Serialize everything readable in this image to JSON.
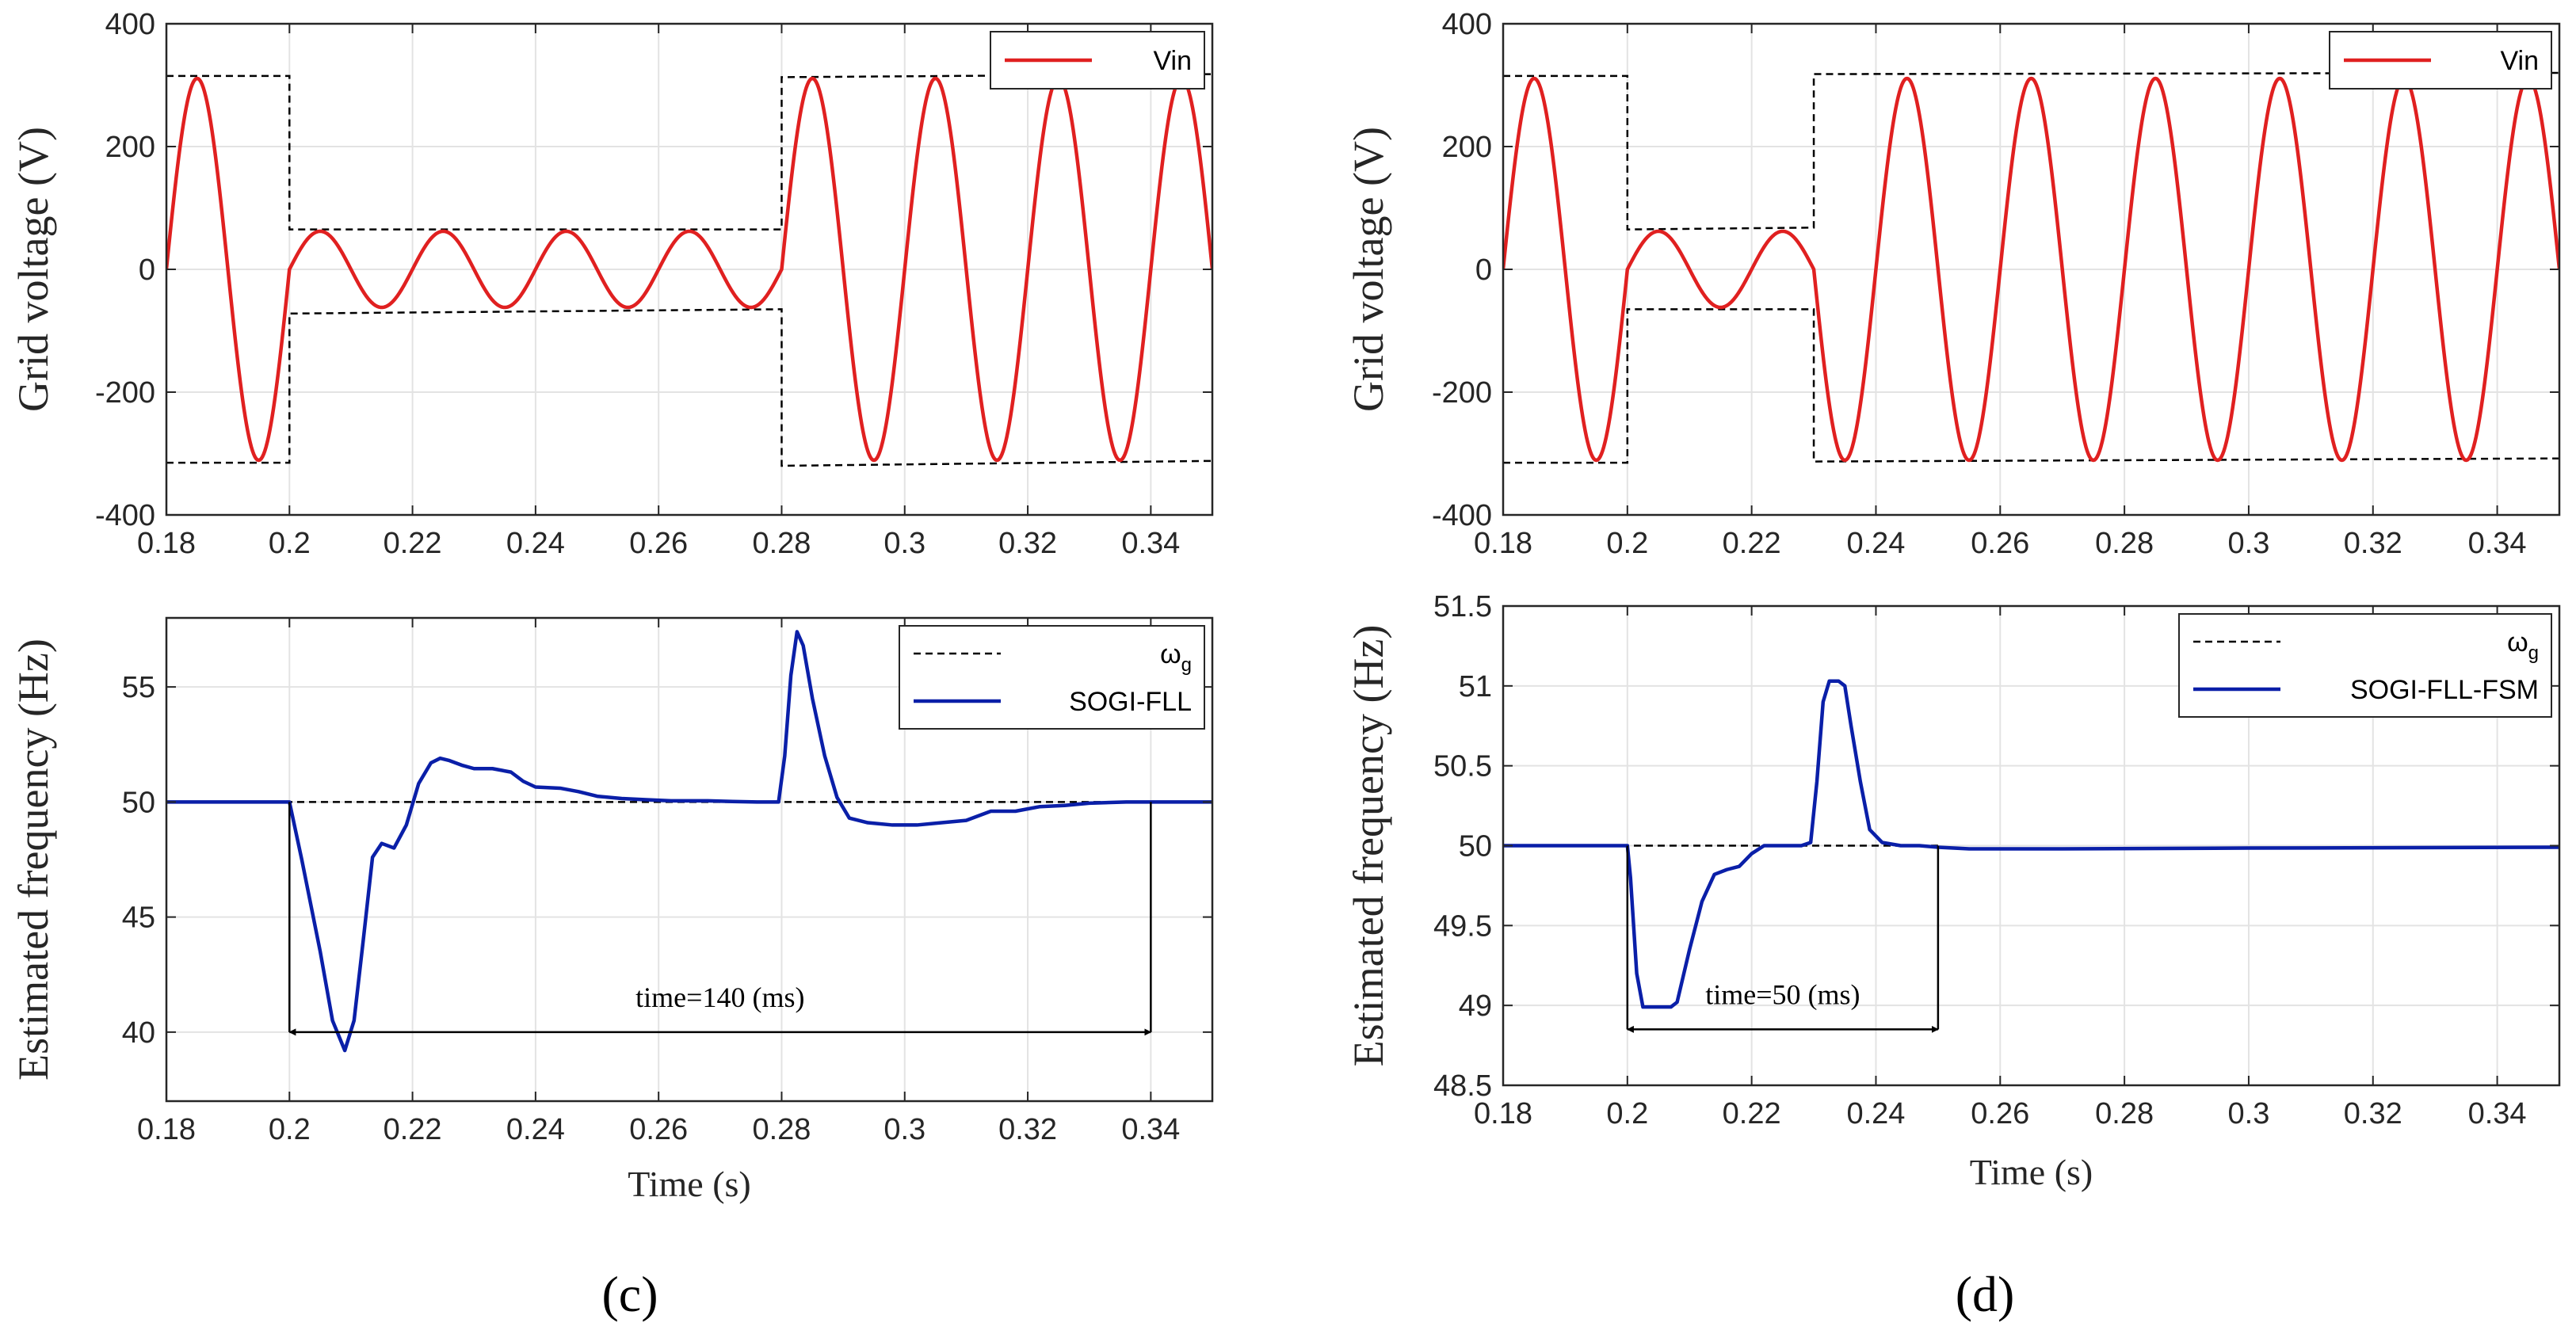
{
  "chart_data": [
    {
      "id": "c_top",
      "type": "line",
      "panel": "c",
      "title": "",
      "xlabel": "",
      "ylabel": "Grid voltage (V)",
      "xlim": [
        0.18,
        0.35
      ],
      "ylim": [
        -400,
        400
      ],
      "xticks": [
        0.18,
        0.2,
        0.22,
        0.24,
        0.26,
        0.28,
        0.3,
        0.32,
        0.34
      ],
      "yticks": [
        -400,
        -200,
        0,
        200,
        400
      ],
      "xtick_labels": [
        "0.18",
        "0.2",
        "0.22",
        "0.24",
        "0.26",
        "0.28",
        "0.3",
        "0.32",
        "0.34"
      ],
      "ytick_labels": [
        "-400",
        "-200",
        "0",
        "200",
        "400"
      ],
      "grid": true,
      "legend": {
        "position": "top-right",
        "entries": [
          {
            "label": "Vin",
            "color": "#e02020",
            "style": "solid"
          }
        ]
      },
      "signal": {
        "name": "Vin",
        "kind": "sine",
        "frequency_hz": 50,
        "color": "#e02020",
        "segments": [
          [
            0.18,
            0.2,
            311
          ],
          [
            0.2,
            0.28,
            62
          ],
          [
            0.28,
            0.35,
            311
          ]
        ]
      },
      "envelope": {
        "color": "#000000",
        "style": "dashed",
        "upper": [
          [
            0.18,
            315
          ],
          [
            0.2,
            315
          ],
          [
            0.2,
            65
          ],
          [
            0.28,
            65
          ],
          [
            0.28,
            313
          ],
          [
            0.35,
            318
          ]
        ],
        "lower": [
          [
            0.18,
            -315
          ],
          [
            0.2,
            -315
          ],
          [
            0.2,
            -72
          ],
          [
            0.28,
            -65
          ],
          [
            0.28,
            -320
          ],
          [
            0.35,
            -312
          ]
        ]
      }
    },
    {
      "id": "c_bottom",
      "type": "line",
      "panel": "c",
      "title": "",
      "xlabel": "Time (s)",
      "ylabel": "Estimated frequency (Hz)",
      "xlim": [
        0.18,
        0.35
      ],
      "ylim": [
        37,
        58
      ],
      "xticks": [
        0.18,
        0.2,
        0.22,
        0.24,
        0.26,
        0.28,
        0.3,
        0.32,
        0.34
      ],
      "yticks": [
        40,
        45,
        50,
        55
      ],
      "xtick_labels": [
        "0.18",
        "0.2",
        "0.22",
        "0.24",
        "0.26",
        "0.28",
        "0.3",
        "0.32",
        "0.34"
      ],
      "ytick_labels": [
        "40",
        "45",
        "50",
        "55"
      ],
      "grid": true,
      "legend": {
        "position": "top-right",
        "entries": [
          {
            "label": "ωg",
            "color": "#000000",
            "style": "dashed"
          },
          {
            "label": "SOGI-FLL",
            "color": "#0a1fa8",
            "style": "solid"
          }
        ]
      },
      "series": [
        {
          "name": "ωg",
          "style": "dashed",
          "color": "#000000",
          "x": [
            0.18,
            0.35
          ],
          "y": [
            50,
            50
          ]
        },
        {
          "name": "SOGI-FLL",
          "style": "solid",
          "color": "#0a1fa8",
          "x": [
            0.18,
            0.2,
            0.202,
            0.205,
            0.207,
            0.209,
            0.2105,
            0.212,
            0.2135,
            0.215,
            0.217,
            0.219,
            0.221,
            0.223,
            0.2245,
            0.226,
            0.228,
            0.23,
            0.233,
            0.236,
            0.238,
            0.24,
            0.244,
            0.247,
            0.25,
            0.254,
            0.258,
            0.262,
            0.268,
            0.272,
            0.276,
            0.2795,
            0.2805,
            0.2815,
            0.2825,
            0.2835,
            0.285,
            0.287,
            0.289,
            0.291,
            0.294,
            0.298,
            0.302,
            0.306,
            0.31,
            0.314,
            0.318,
            0.322,
            0.326,
            0.33,
            0.336,
            0.342,
            0.35
          ],
          "y": [
            50,
            50,
            47.5,
            43.5,
            40.5,
            39.2,
            40.5,
            44,
            47.6,
            48.2,
            48,
            49,
            50.8,
            51.7,
            51.9,
            51.8,
            51.6,
            51.45,
            51.45,
            51.3,
            50.9,
            50.65,
            50.6,
            50.45,
            50.25,
            50.15,
            50.1,
            50.05,
            50.05,
            50.02,
            50.0,
            50.0,
            52,
            55.5,
            57.4,
            56.8,
            54.5,
            52,
            50.2,
            49.3,
            49.1,
            49.0,
            49.0,
            49.1,
            49.2,
            49.6,
            49.6,
            49.8,
            49.85,
            49.95,
            50.0,
            50.0,
            50.0
          ]
        }
      ],
      "annotations": [
        {
          "text": "time=140 (ms)",
          "x_start": 0.2,
          "x_end": 0.34,
          "y": 40,
          "kind": "double-arrow"
        }
      ]
    },
    {
      "id": "d_top",
      "type": "line",
      "panel": "d",
      "title": "",
      "xlabel": "",
      "ylabel": "Grid voltage (V)",
      "xlim": [
        0.18,
        0.35
      ],
      "ylim": [
        -400,
        400
      ],
      "xticks": [
        0.18,
        0.2,
        0.22,
        0.24,
        0.26,
        0.28,
        0.3,
        0.32,
        0.34
      ],
      "yticks": [
        -400,
        -200,
        0,
        200,
        400
      ],
      "xtick_labels": [
        "0.18",
        "0.2",
        "0.22",
        "0.24",
        "0.26",
        "0.28",
        "0.3",
        "0.32",
        "0.34"
      ],
      "ytick_labels": [
        "-400",
        "-200",
        "0",
        "200",
        "400"
      ],
      "grid": true,
      "legend": {
        "position": "top-right",
        "entries": [
          {
            "label": "Vin",
            "color": "#e02020",
            "style": "solid"
          }
        ]
      },
      "signal": {
        "name": "Vin",
        "kind": "sine",
        "frequency_hz": 50,
        "color": "#e02020",
        "segments": [
          [
            0.18,
            0.2,
            311
          ],
          [
            0.2,
            0.23,
            62
          ],
          [
            0.23,
            0.35,
            311
          ]
        ]
      },
      "envelope": {
        "color": "#000000",
        "style": "dashed",
        "upper": [
          [
            0.18,
            315
          ],
          [
            0.2,
            315
          ],
          [
            0.2,
            65
          ],
          [
            0.23,
            68
          ],
          [
            0.23,
            318
          ],
          [
            0.35,
            320
          ]
        ],
        "lower": [
          [
            0.18,
            -315
          ],
          [
            0.2,
            -315
          ],
          [
            0.2,
            -65
          ],
          [
            0.23,
            -65
          ],
          [
            0.23,
            -313
          ],
          [
            0.35,
            -308
          ]
        ]
      }
    },
    {
      "id": "d_bottom",
      "type": "line",
      "panel": "d",
      "title": "",
      "xlabel": "Time (s)",
      "ylabel": "Estimated frequency (Hz)",
      "xlim": [
        0.18,
        0.35
      ],
      "ylim": [
        48.5,
        51.5
      ],
      "xticks": [
        0.18,
        0.2,
        0.22,
        0.24,
        0.26,
        0.28,
        0.3,
        0.32,
        0.34
      ],
      "yticks": [
        48.5,
        49,
        49.5,
        50,
        50.5,
        51,
        51.5
      ],
      "xtick_labels": [
        "0.18",
        "0.2",
        "0.22",
        "0.24",
        "0.26",
        "0.28",
        "0.3",
        "0.32",
        "0.34"
      ],
      "ytick_labels": [
        "48.5",
        "49",
        "49.5",
        "50",
        "50.5",
        "51",
        "51.5"
      ],
      "grid": true,
      "legend": {
        "position": "top-right",
        "entries": [
          {
            "label": "ωg",
            "color": "#000000",
            "style": "dashed"
          },
          {
            "label": "SOGI-FLL-FSM",
            "color": "#0a1fa8",
            "style": "solid"
          }
        ]
      },
      "series": [
        {
          "name": "ωg",
          "style": "dashed",
          "color": "#000000",
          "x": [
            0.18,
            0.25
          ],
          "y": [
            50,
            50
          ]
        },
        {
          "name": "SOGI-FLL-FSM",
          "style": "solid",
          "color": "#0a1fa8",
          "x": [
            0.18,
            0.2,
            0.2005,
            0.2015,
            0.2025,
            0.207,
            0.208,
            0.21,
            0.212,
            0.214,
            0.216,
            0.218,
            0.22,
            0.222,
            0.2245,
            0.228,
            0.2295,
            0.2305,
            0.2315,
            0.2325,
            0.234,
            0.235,
            0.236,
            0.2375,
            0.239,
            0.241,
            0.244,
            0.247,
            0.25,
            0.255,
            0.27,
            0.3,
            0.35
          ],
          "y": [
            50,
            50,
            49.8,
            49.2,
            48.99,
            48.99,
            49.02,
            49.35,
            49.65,
            49.82,
            49.85,
            49.87,
            49.95,
            50.0,
            50.0,
            50.0,
            50.02,
            50.4,
            50.9,
            51.03,
            51.03,
            51.0,
            50.75,
            50.4,
            50.1,
            50.02,
            50.0,
            50.0,
            49.99,
            49.98,
            49.98,
            49.985,
            49.99
          ]
        }
      ],
      "annotations": [
        {
          "text": "time=50 (ms)",
          "x_start": 0.2,
          "x_end": 0.25,
          "y": 48.85,
          "kind": "double-arrow"
        }
      ]
    }
  ],
  "panel_labels": {
    "c": "(c)",
    "d": "(d)"
  }
}
